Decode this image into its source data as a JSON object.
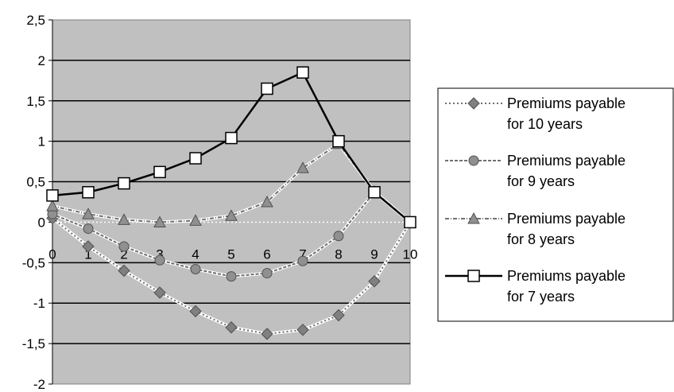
{
  "chart_data": {
    "type": "line",
    "x": [
      0,
      1,
      2,
      3,
      4,
      5,
      6,
      7,
      8,
      9,
      10
    ],
    "x_tick_labels": [
      "0",
      "1",
      "2",
      "3",
      "4",
      "5",
      "6",
      "7",
      "8",
      "9",
      "10"
    ],
    "y_tick_labels": [
      "2,5",
      "2",
      "1,5",
      "1",
      "0,5",
      "0",
      "-0,5",
      "-1",
      "-1,5",
      "-2"
    ],
    "ylim": [
      -2,
      2.5
    ],
    "xlim": [
      0,
      10
    ],
    "grid": true,
    "plot_background": "#c0c0c0",
    "legend_position": "right",
    "series": [
      {
        "name": "Premiums payable for 10 years",
        "label_lines": [
          "Premiums payable",
          "for 10 years"
        ],
        "marker": "diamond",
        "line_style": "dotted",
        "color": "#808080",
        "values": [
          0.05,
          -0.3,
          -0.6,
          -0.87,
          -1.1,
          -1.3,
          -1.38,
          -1.33,
          -1.15,
          -0.73,
          0.0
        ]
      },
      {
        "name": "Premiums payable for 9 years",
        "label_lines": [
          "Premiums payable",
          "for 9 years"
        ],
        "marker": "circle",
        "line_style": "dashed",
        "color": "#808080",
        "values": [
          0.1,
          -0.08,
          -0.3,
          -0.47,
          -0.58,
          -0.67,
          -0.63,
          -0.48,
          -0.17,
          0.37,
          0.0
        ]
      },
      {
        "name": "Premiums payable for 8 years",
        "label_lines": [
          "Premiums payable",
          "for 8 years"
        ],
        "marker": "triangle",
        "line_style": "dash-dot",
        "color": "#808080",
        "values": [
          0.2,
          0.1,
          0.03,
          0.0,
          0.02,
          0.08,
          0.25,
          0.67,
          0.97,
          0.38,
          0.0
        ]
      },
      {
        "name": "Premiums payable for 7 years",
        "label_lines": [
          "Premiums payable",
          "for 7 years"
        ],
        "marker": "square",
        "line_style": "solid",
        "color": "#000000",
        "values": [
          0.33,
          0.37,
          0.48,
          0.62,
          0.79,
          1.04,
          1.65,
          1.85,
          1.0,
          0.37,
          0.0
        ]
      }
    ]
  }
}
